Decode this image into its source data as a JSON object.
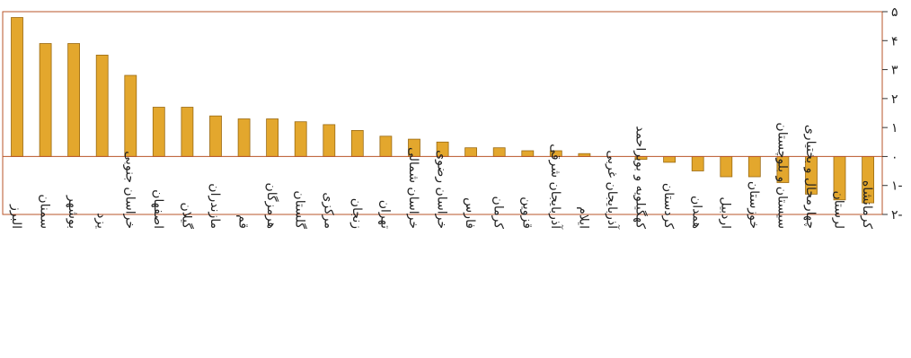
{
  "chart_data": {
    "type": "bar",
    "title": "",
    "xlabel": "",
    "ylabel": "",
    "ylim": [
      -2,
      5
    ],
    "yticks": [
      -2,
      -1,
      0,
      1,
      2,
      3,
      4,
      5
    ],
    "ytick_labels": [
      "۲-",
      "۱-",
      "۰",
      "۱",
      "۲",
      "۳",
      "۴",
      "۵"
    ],
    "y_axis_side": "right",
    "grid": false,
    "colors": {
      "bar": "#E3A72D",
      "bar_edge": "#9A6A12",
      "frame": "#B8552A"
    },
    "categories": [
      "البرز",
      "سمنان",
      "بوشهر",
      "یزد",
      "خراسان جنوبی",
      "اصفهان",
      "گیلان",
      "مازندران",
      "قم",
      "هرمزگان",
      "گلستان",
      "مرکزی",
      "زنجان",
      "تهران",
      "خراسان شمالی",
      "خراسان رضوی",
      "فارس",
      "کرمان",
      "قزوین",
      "آذربایجان شرقی",
      "ایلام",
      "آذربایجان غربی",
      "کهگیلویه و بویراحمد",
      "کردستان",
      "همدان",
      "اردبیل",
      "خوزستان",
      "سیستان و بلوچستان",
      "چهارمحال و بختیاری",
      "لرستان",
      "کرمانشاه"
    ],
    "values": [
      4.8,
      3.9,
      3.9,
      3.5,
      2.8,
      1.7,
      1.7,
      1.4,
      1.3,
      1.3,
      1.2,
      1.1,
      0.9,
      0.7,
      0.6,
      0.5,
      0.3,
      0.3,
      0.2,
      0.2,
      0.1,
      0.0,
      -0.1,
      -0.2,
      -0.5,
      -0.7,
      -0.7,
      -0.9,
      -1.3,
      -1.5,
      -1.6
    ]
  }
}
